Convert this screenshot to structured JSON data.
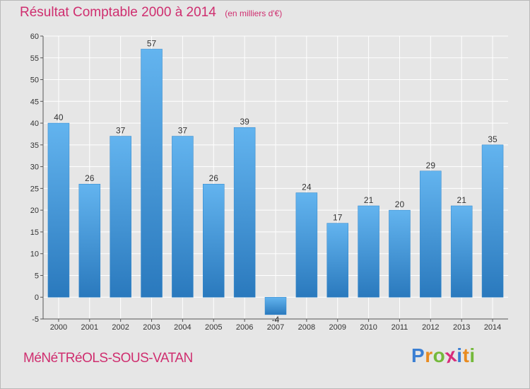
{
  "chart_data": {
    "type": "bar",
    "title": "Résultat Comptable 2000 à 2014",
    "subtitle": "(en milliers d'€)",
    "categories": [
      "2000",
      "2001",
      "2002",
      "2003",
      "2004",
      "2005",
      "2006",
      "2007",
      "2008",
      "2009",
      "2010",
      "2011",
      "2012",
      "2013",
      "2014"
    ],
    "values": [
      40,
      26,
      37,
      57,
      37,
      26,
      39,
      -4,
      24,
      17,
      21,
      20,
      29,
      21,
      35
    ],
    "ylim": [
      -5,
      60
    ],
    "yticks": [
      -5,
      0,
      5,
      10,
      15,
      20,
      25,
      30,
      35,
      40,
      45,
      50,
      55,
      60
    ],
    "xlabel": "",
    "ylabel": "",
    "grid": true,
    "bar_color": "#4a9fe0",
    "grid_color": "#ffffff"
  },
  "footer": {
    "commune": "MéNéTRéOLS-SOUS-VATAN",
    "logo_letters": [
      "P",
      "r",
      "o",
      "x",
      "i",
      "t",
      "i"
    ],
    "logo_colors": [
      "#3b7fd3",
      "#e98b1f",
      "#74b93b",
      "#d82c7a",
      "#3b7fd3",
      "#e98b1f",
      "#74b93b"
    ]
  }
}
